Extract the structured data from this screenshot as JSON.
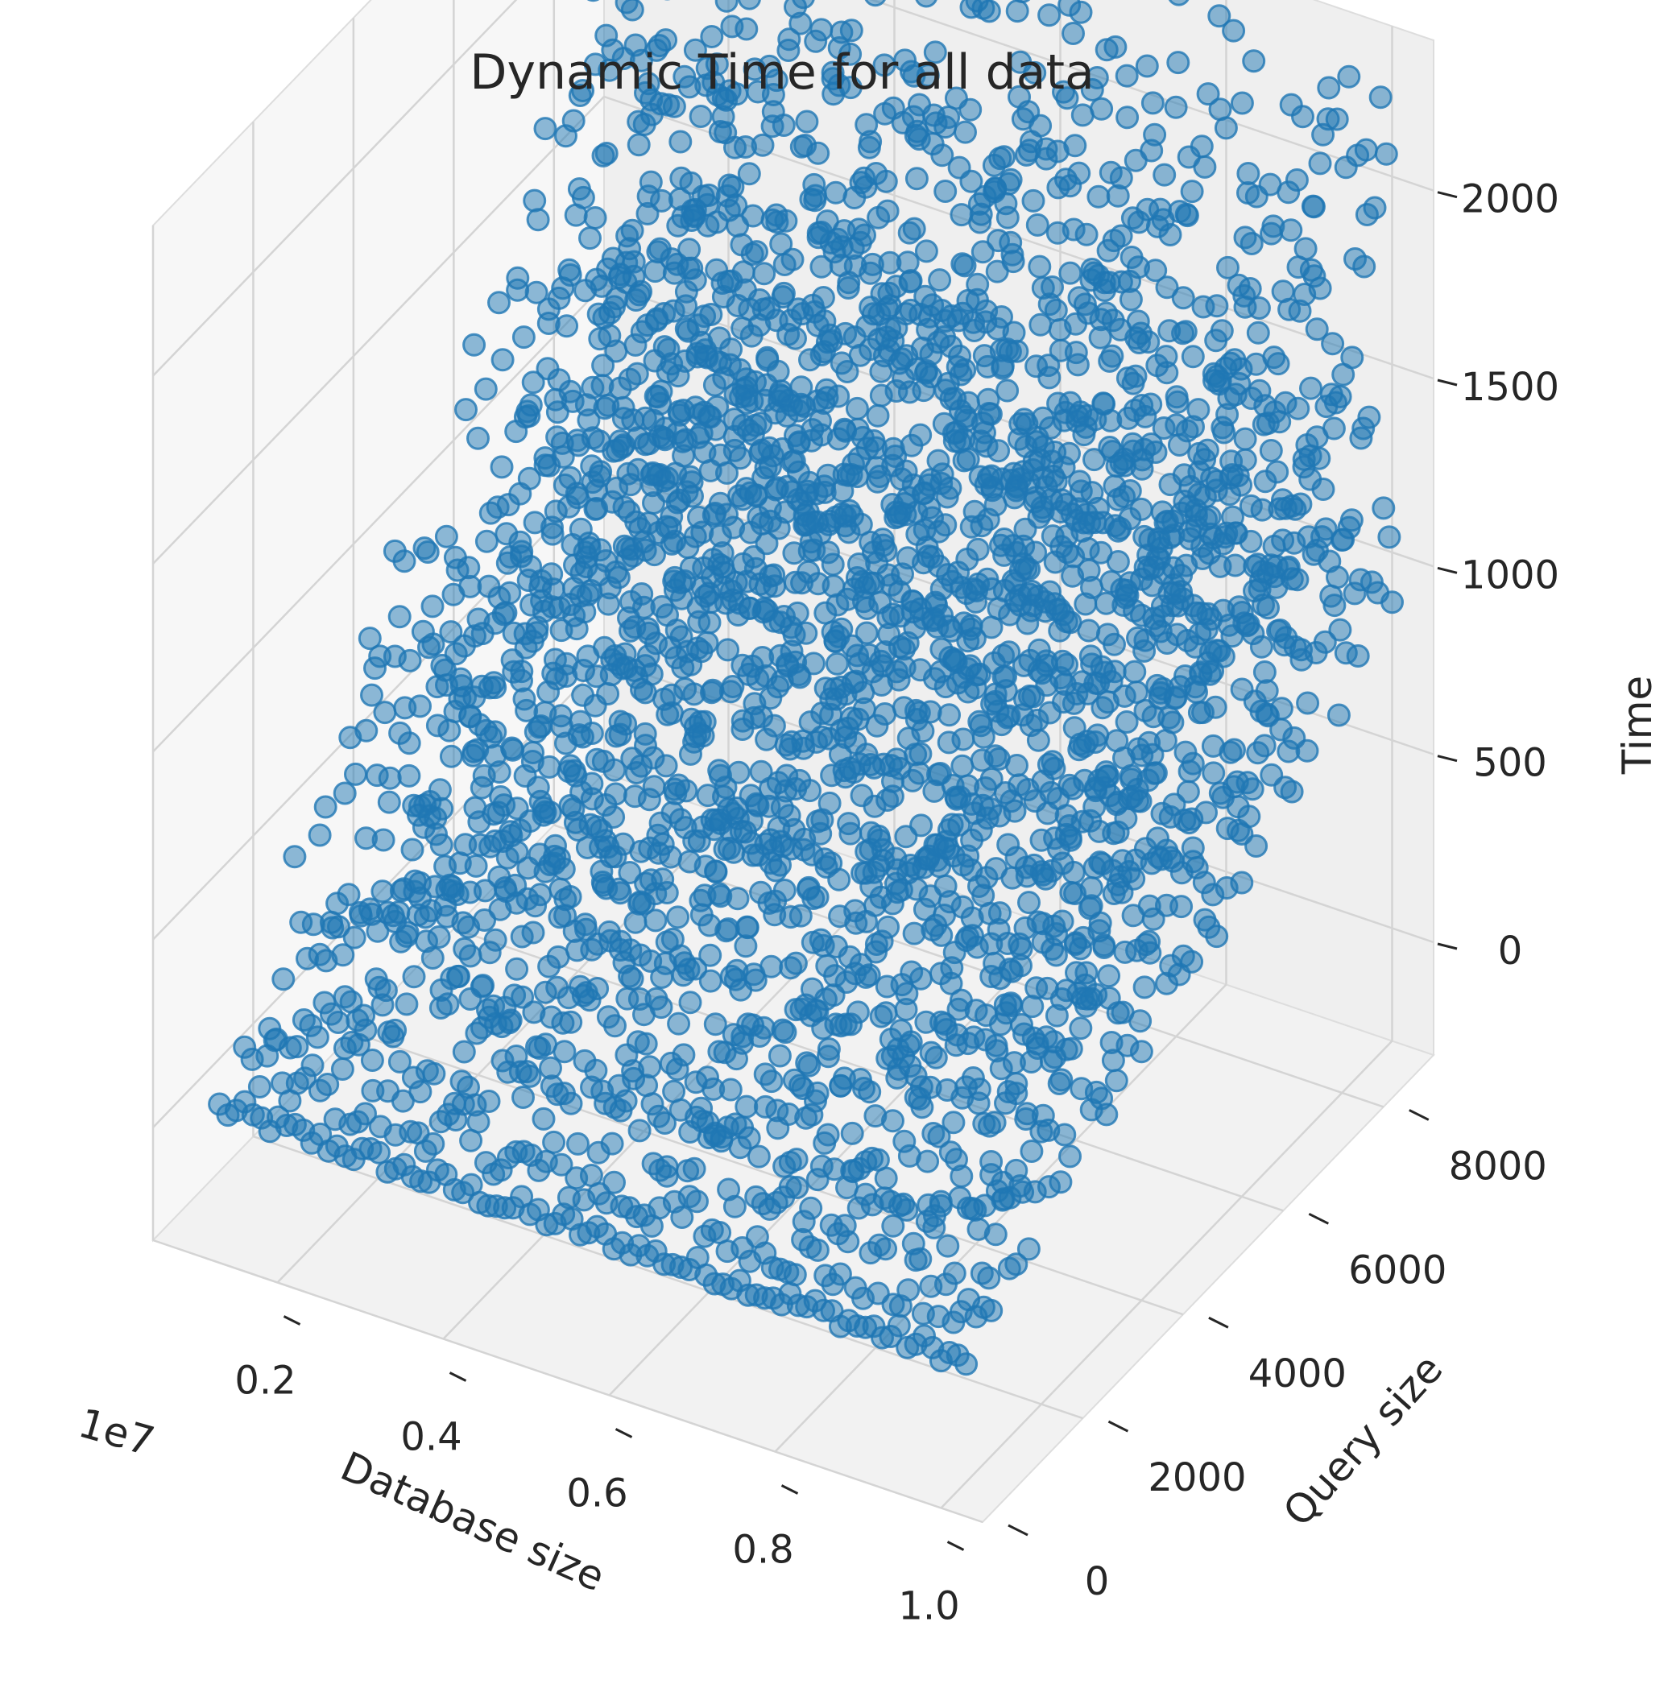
{
  "chart_data": {
    "type": "scatter",
    "projection": "3d",
    "title": "Dynamic Time for all data",
    "xlabel": "Database size",
    "ylabel": "Query size",
    "zlabel": "Time",
    "x_offset_label": "1e7",
    "xlim": [
      0.05,
      1.05
    ],
    "ylim": [
      0,
      9000
    ],
    "zlim": [
      -300,
      2400
    ],
    "x_ticks": [
      {
        "value": 0.2,
        "label": "0.2"
      },
      {
        "value": 0.4,
        "label": "0.4"
      },
      {
        "value": 0.6,
        "label": "0.6"
      },
      {
        "value": 0.8,
        "label": "0.8"
      },
      {
        "value": 1.0,
        "label": "1.0"
      }
    ],
    "y_ticks": [
      {
        "value": 0,
        "label": "0"
      },
      {
        "value": 2000,
        "label": "2000"
      },
      {
        "value": 4000,
        "label": "4000"
      },
      {
        "value": 6000,
        "label": "6000"
      },
      {
        "value": 8000,
        "label": "8000"
      }
    ],
    "z_ticks": [
      {
        "value": 0,
        "label": "0"
      },
      {
        "value": 500,
        "label": "500"
      },
      {
        "value": 1000,
        "label": "1000"
      },
      {
        "value": 1500,
        "label": "1500"
      },
      {
        "value": 2000,
        "label": "2000"
      }
    ],
    "grid": true,
    "marker_color": "#1f77b4",
    "marker_alpha": 0.5,
    "series": [
      {
        "query_sizes": [
          500,
          1000,
          1500,
          2000,
          2500,
          3000,
          3500,
          4000,
          4500,
          5000,
          5500,
          6000,
          6500,
          7000,
          7500,
          8000,
          8500,
          9000
        ],
        "database_size_range": [
          0.1,
          1.0
        ],
        "time_ranges_per_query_size": [
          [
            0,
            60
          ],
          [
            0,
            160
          ],
          [
            60,
            330
          ],
          [
            100,
            500
          ],
          [
            150,
            650
          ],
          [
            200,
            800
          ],
          [
            250,
            950
          ],
          [
            300,
            1100
          ],
          [
            350,
            1250
          ],
          [
            400,
            1400
          ],
          [
            450,
            1550
          ],
          [
            500,
            1700
          ],
          [
            550,
            1850
          ],
          [
            600,
            1950
          ],
          [
            650,
            2050
          ],
          [
            700,
            2150
          ],
          [
            750,
            2250
          ],
          [
            800,
            2300
          ]
        ]
      }
    ]
  }
}
